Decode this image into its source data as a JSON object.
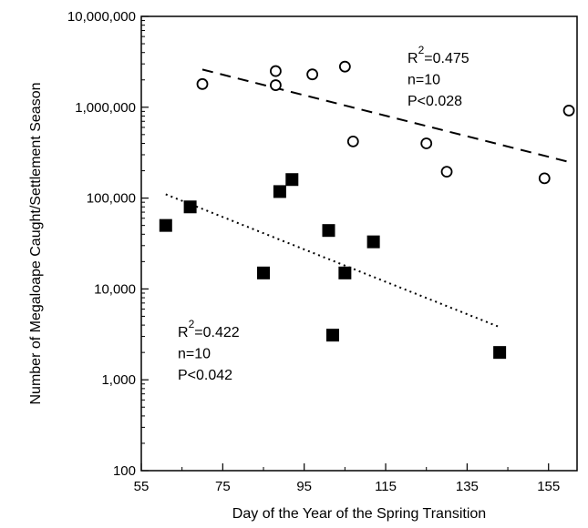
{
  "chart_data": {
    "type": "scatter",
    "xlabel": "Day of the Year of the Spring Transition",
    "ylabel": "Number of Megaloape Caught/Settlement Season",
    "xlim": [
      55,
      162
    ],
    "ylim": [
      100,
      10000000
    ],
    "y_scale": "log",
    "x_ticks": [
      "55",
      "75",
      "95",
      "115",
      "135",
      "155"
    ],
    "y_ticks": [
      "100",
      "1,000",
      "10,000",
      "100,000",
      "1,000,000",
      "10,000,000"
    ],
    "grid": false,
    "series": [
      {
        "marker": "open-circle",
        "points": [
          {
            "x": 70,
            "y": 1800000
          },
          {
            "x": 88,
            "y": 2500000
          },
          {
            "x": 88,
            "y": 1750000
          },
          {
            "x": 97,
            "y": 2300000
          },
          {
            "x": 105,
            "y": 2800000
          },
          {
            "x": 107,
            "y": 420000
          },
          {
            "x": 125,
            "y": 400000
          },
          {
            "x": 130,
            "y": 195000
          },
          {
            "x": 154,
            "y": 165000
          },
          {
            "x": 160,
            "y": 920000
          }
        ],
        "trend": {
          "style": "dashed",
          "x": [
            70,
            160
          ],
          "y": [
            2600000,
            250000
          ]
        },
        "annotation": {
          "r2_value": "=0.475",
          "n": "n=10",
          "p": "P<0.028"
        }
      },
      {
        "marker": "filled-square",
        "points": [
          {
            "x": 61,
            "y": 50000
          },
          {
            "x": 67,
            "y": 80000
          },
          {
            "x": 85,
            "y": 15000
          },
          {
            "x": 89,
            "y": 118000
          },
          {
            "x": 92,
            "y": 160000
          },
          {
            "x": 101,
            "y": 44000
          },
          {
            "x": 102,
            "y": 3100
          },
          {
            "x": 105,
            "y": 15000
          },
          {
            "x": 112,
            "y": 33000
          },
          {
            "x": 143,
            "y": 2000
          }
        ],
        "trend": {
          "style": "dotted",
          "x": [
            61,
            143
          ],
          "y": [
            110000,
            3800
          ]
        },
        "annotation": {
          "r2_value": "=0.422",
          "n": "n=10",
          "p": "P<0.042"
        }
      }
    ]
  }
}
